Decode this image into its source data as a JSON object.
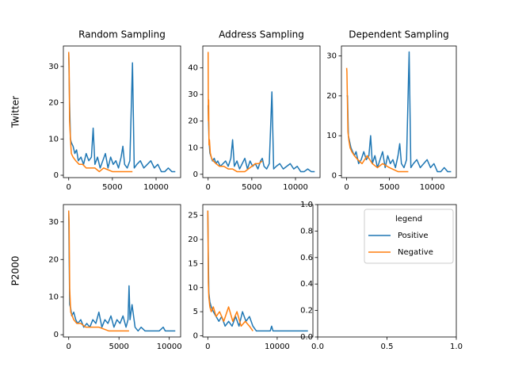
{
  "chart_data": [
    {
      "type": "line",
      "title": "Random Sampling",
      "row_label": "Twitter",
      "xlim": [
        -610,
        12810
      ],
      "ylim": [
        -0.65,
        35.65
      ],
      "xticks": [
        0,
        5000,
        10000
      ],
      "yticks": [
        0,
        10,
        20,
        30
      ],
      "series": [
        {
          "name": "Positive",
          "color": "#1f77b4",
          "x": [
            0,
            100,
            200,
            300,
            500,
            700,
            900,
            1100,
            1400,
            1700,
            2000,
            2300,
            2600,
            2800,
            3000,
            3300,
            3600,
            3900,
            4200,
            4500,
            4800,
            5100,
            5400,
            5700,
            6000,
            6200,
            6400,
            6700,
            7000,
            7300,
            7500,
            7800,
            8200,
            8600,
            9000,
            9400,
            9800,
            10200,
            10600,
            11000,
            11400,
            11800,
            12200
          ],
          "values": [
            34,
            20,
            10,
            9,
            8,
            6,
            7,
            4,
            5,
            3,
            6,
            4,
            5,
            13,
            3,
            5,
            2,
            4,
            6,
            2,
            5,
            3,
            4,
            2,
            5,
            8,
            3,
            2,
            4,
            31,
            2,
            3,
            4,
            2,
            3,
            4,
            2,
            3,
            1,
            1,
            2,
            1,
            1
          ]
        },
        {
          "name": "Negative",
          "color": "#ff7f0e",
          "x": [
            0,
            50,
            100,
            200,
            300,
            500,
            800,
            1200,
            1600,
            2000,
            2500,
            3000,
            3500,
            4000,
            5000,
            6000,
            7000,
            7300
          ],
          "values": [
            34,
            30,
            15,
            10,
            6,
            5,
            4,
            3,
            3,
            2,
            2,
            2,
            1,
            2,
            1,
            1,
            1,
            1
          ]
        }
      ]
    },
    {
      "type": "line",
      "title": "Address Sampling",
      "xlim": [
        -610,
        12810
      ],
      "ylim": [
        -1.25,
        48.25
      ],
      "xticks": [
        0,
        5000,
        10000
      ],
      "yticks": [
        0,
        10,
        20,
        30,
        40
      ],
      "series": [
        {
          "name": "Positive",
          "color": "#1f77b4",
          "x": [
            0,
            100,
            200,
            300,
            500,
            700,
            900,
            1100,
            1400,
            1700,
            2000,
            2300,
            2600,
            2800,
            3000,
            3300,
            3600,
            3900,
            4200,
            4500,
            4800,
            5100,
            5400,
            5700,
            6000,
            6200,
            6400,
            6700,
            7000,
            7300,
            7500,
            7800,
            8200,
            8600,
            9000,
            9400,
            9800,
            10200,
            10600,
            11000,
            11400,
            11800,
            12200
          ],
          "values": [
            26,
            13,
            8,
            7,
            5,
            6,
            4,
            5,
            3,
            4,
            5,
            3,
            6,
            13,
            3,
            5,
            2,
            4,
            6,
            2,
            5,
            3,
            4,
            2,
            5,
            6,
            3,
            2,
            4,
            31,
            2,
            3,
            4,
            2,
            3,
            4,
            2,
            3,
            1,
            1,
            2,
            1,
            1
          ]
        },
        {
          "name": "Negative",
          "color": "#ff7f0e",
          "x": [
            0,
            30,
            60,
            100,
            150,
            250,
            400,
            600,
            900,
            1300,
            1800,
            2300,
            2800,
            3300,
            3800,
            4200,
            4600,
            5000,
            5400,
            5800,
            6200
          ],
          "values": [
            46,
            20,
            28,
            11,
            13,
            8,
            6,
            5,
            4,
            3,
            3,
            2,
            2,
            1,
            1,
            1,
            2,
            3,
            4,
            4,
            5
          ]
        }
      ]
    },
    {
      "type": "line",
      "title": "Dependent Sampling",
      "xlim": [
        -610,
        12810
      ],
      "ylim": [
        -0.5,
        32.5
      ],
      "xticks": [
        0,
        5000,
        10000
      ],
      "yticks": [
        0,
        10,
        20,
        30
      ],
      "series": [
        {
          "name": "Positive",
          "color": "#1f77b4",
          "x": [
            0,
            100,
            200,
            300,
            500,
            700,
            900,
            1100,
            1400,
            1700,
            2000,
            2300,
            2600,
            2800,
            3000,
            3300,
            3600,
            3900,
            4200,
            4500,
            4800,
            5100,
            5400,
            5700,
            6000,
            6200,
            6400,
            6700,
            7000,
            7300,
            7500,
            7800,
            8200,
            8600,
            9000,
            9400,
            9800,
            10200,
            10600,
            11000,
            11400,
            11800,
            12200
          ],
          "values": [
            20,
            20,
            10,
            9,
            7,
            6,
            5,
            6,
            3,
            4,
            6,
            4,
            5,
            10,
            3,
            5,
            2,
            4,
            6,
            2,
            5,
            3,
            4,
            2,
            5,
            8,
            3,
            2,
            4,
            31,
            2,
            3,
            4,
            2,
            3,
            4,
            2,
            3,
            1,
            1,
            2,
            1,
            1
          ]
        },
        {
          "name": "Negative",
          "color": "#ff7f0e",
          "x": [
            0,
            30,
            80,
            150,
            250,
            400,
            600,
            900,
            1300,
            1800,
            2400,
            3000,
            3600,
            4200,
            5000,
            6000,
            7200
          ],
          "values": [
            27,
            26,
            20,
            11,
            9,
            7,
            6,
            5,
            4,
            3,
            5,
            3,
            2,
            3,
            2,
            1,
            1
          ]
        }
      ]
    },
    {
      "type": "line",
      "row_label": "P2000",
      "xlim": [
        -530,
        11130
      ],
      "ylim": [
        -0.6,
        34.6
      ],
      "xticks": [
        0,
        5000,
        10000
      ],
      "yticks": [
        0,
        10,
        20,
        30
      ],
      "series": [
        {
          "name": "Positive",
          "color": "#1f77b4",
          "x": [
            0,
            50,
            100,
            200,
            300,
            500,
            700,
            900,
            1200,
            1500,
            1800,
            2100,
            2400,
            2700,
            3000,
            3300,
            3600,
            3900,
            4200,
            4500,
            4800,
            5100,
            5400,
            5700,
            5900,
            6000,
            6100,
            6300,
            6600,
            6900,
            7200,
            7600,
            8000,
            9000,
            9400,
            9600,
            10000,
            10600
          ],
          "values": [
            33,
            20,
            8,
            7,
            5,
            6,
            4,
            3,
            4,
            2,
            3,
            2,
            4,
            3,
            6,
            2,
            4,
            3,
            5,
            2,
            4,
            3,
            5,
            2,
            4,
            13,
            4,
            8,
            2,
            1,
            2,
            1,
            1,
            1,
            2,
            1,
            1,
            1
          ]
        },
        {
          "name": "Negative",
          "color": "#ff7f0e",
          "x": [
            0,
            40,
            100,
            200,
            350,
            500,
            800,
            1200,
            1700,
            2300,
            3000,
            4000,
            5000,
            6000
          ],
          "values": [
            33,
            30,
            12,
            6,
            5,
            4,
            3,
            3,
            2,
            2,
            2,
            1,
            1,
            1
          ]
        }
      ]
    },
    {
      "type": "line",
      "xlim": [
        -720,
        15150
      ],
      "ylim": [
        -0.25,
        27.25
      ],
      "xticks": [
        0,
        10000
      ],
      "yticks": [
        0,
        5,
        10,
        15,
        20,
        25
      ],
      "series": [
        {
          "name": "Positive",
          "color": "#1f77b4",
          "x": [
            0,
            60,
            150,
            300,
            500,
            800,
            1200,
            1600,
            2000,
            2500,
            3000,
            3500,
            4000,
            4500,
            5000,
            5500,
            6000,
            6500,
            7000,
            7500,
            8000,
            9000,
            9200,
            9400,
            10000,
            11000,
            12000,
            13000,
            14430
          ],
          "values": [
            26,
            18,
            9,
            7,
            6,
            5,
            4,
            3,
            4,
            2,
            3,
            2,
            4,
            2,
            5,
            3,
            4,
            2,
            1,
            1,
            1,
            1,
            2,
            1,
            1,
            1,
            1,
            1,
            1
          ]
        },
        {
          "name": "Negative",
          "color": "#ff7f0e",
          "x": [
            0,
            30,
            80,
            150,
            300,
            500,
            800,
            1200,
            1700,
            2300,
            3000,
            3600,
            4200,
            4800,
            5400,
            6000,
            6500
          ],
          "values": [
            26,
            22,
            11,
            8,
            6,
            5,
            6,
            4,
            5,
            3,
            6,
            3,
            5,
            2,
            3,
            2,
            1
          ]
        }
      ]
    },
    {
      "type": "empty",
      "xlim": [
        0,
        1
      ],
      "ylim": [
        0,
        1
      ],
      "xticks": [
        {
          "value": 0,
          "label": "0.0"
        },
        {
          "value": 0.5,
          "label": "0.5"
        },
        {
          "value": 1,
          "label": "1.0"
        }
      ],
      "yticks": [
        {
          "value": 0,
          "label": "0.0"
        },
        {
          "value": 0.2,
          "label": "0.2"
        },
        {
          "value": 0.4,
          "label": "0.4"
        },
        {
          "value": 0.6,
          "label": "0.6"
        },
        {
          "value": 0.8,
          "label": "0.8"
        },
        {
          "value": 1,
          "label": "1.0"
        }
      ],
      "legend": {
        "title": "legend",
        "position": "upper right",
        "entries": [
          {
            "name": "Positive",
            "color": "#1f77b4"
          },
          {
            "name": "Negative",
            "color": "#ff7f0e"
          }
        ]
      }
    }
  ]
}
